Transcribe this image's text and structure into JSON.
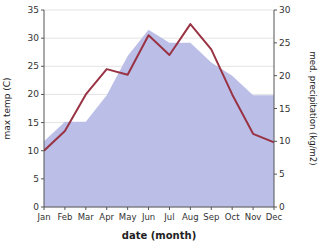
{
  "chart_data": {
    "type": "line",
    "categories": [
      "Jan",
      "Feb",
      "Mar",
      "Apr",
      "May",
      "Jun",
      "Jul",
      "Aug",
      "Sep",
      "Oct",
      "Nov",
      "Dec"
    ],
    "series": [
      {
        "type": "area",
        "axis": "y2",
        "color": "#bbbfe8",
        "values": [
          10,
          13,
          13,
          17,
          23,
          27,
          25,
          25,
          22,
          20,
          17,
          17
        ]
      },
      {
        "type": "line",
        "color": "#993344",
        "values": [
          10,
          13.5,
          20,
          24.5,
          23.5,
          30.5,
          27,
          32.5,
          28,
          20,
          13,
          11.5
        ]
      }
    ],
    "xlabel": "date (month)",
    "ylabel": "max temp (C)",
    "y2label": "med. precipitation (kg/m2)",
    "ylim": [
      0,
      35
    ],
    "yticks": [
      0,
      5,
      10,
      15,
      20,
      25,
      30,
      35
    ],
    "y2lim": [
      0,
      30
    ],
    "y2ticks": [
      0,
      5,
      10,
      15,
      20,
      25,
      30
    ],
    "grid": true
  }
}
